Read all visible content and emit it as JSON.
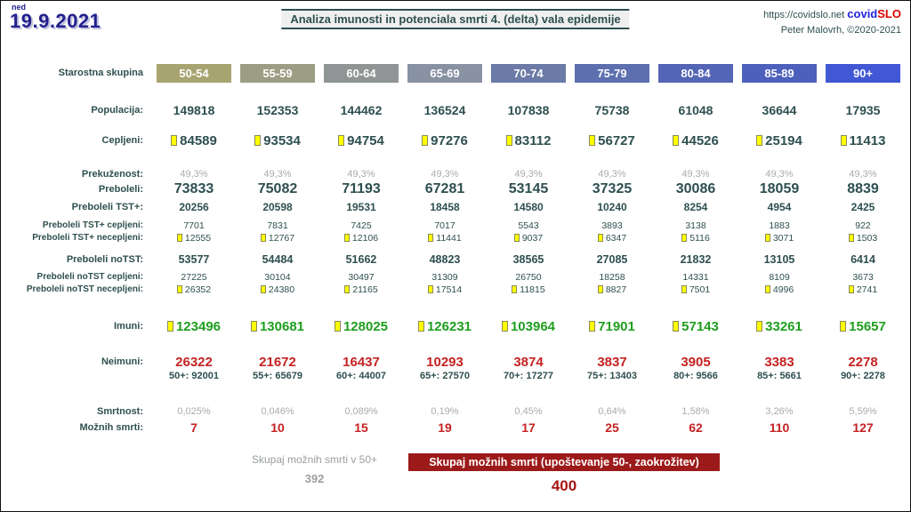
{
  "header": {
    "day_label": "ned",
    "date": "19.9.2021",
    "title": "Analiza imunosti in potenciala smrti 4. (delta) vala epidemije",
    "site_url": "https://covidslo.net",
    "brand_covid": "covid",
    "brand_slo": "SLO",
    "author": "Peter Malovrh, ©2020-2021"
  },
  "table": {
    "age_group_label": "Starostna skupina",
    "columns": [
      "50-54",
      "55-59",
      "60-64",
      "65-69",
      "70-74",
      "75-79",
      "80-84",
      "85-89",
      "90+"
    ],
    "column_colors": [
      "#a8a471",
      "#9d9d85",
      "#909494",
      "#8892a2",
      "#6b7aa6",
      "#5d6fae",
      "#5365b4",
      "#4c60bc",
      "#4257d4"
    ],
    "rows": {
      "populacija": {
        "label": "Populacija:",
        "values": [
          "149818",
          "152353",
          "144462",
          "136524",
          "107838",
          "75738",
          "61048",
          "36644",
          "17935"
        ]
      },
      "cepljeni": {
        "label": "Cepljeni:",
        "values": [
          "84589",
          "93534",
          "94754",
          "97276",
          "83112",
          "56727",
          "44526",
          "25194",
          "11413"
        ]
      },
      "prekuzenost": {
        "label": "Prekuženost:",
        "values": [
          "49,3%",
          "49,3%",
          "49,3%",
          "49,3%",
          "49,3%",
          "49,3%",
          "49,3%",
          "49,3%",
          "49,3%"
        ]
      },
      "preboleli": {
        "label": "Preboleli:",
        "values": [
          "73833",
          "75082",
          "71193",
          "67281",
          "53145",
          "37325",
          "30086",
          "18059",
          "8839"
        ]
      },
      "preboleli_tst": {
        "label": "Preboleli TST+:",
        "values": [
          "20256",
          "20598",
          "19531",
          "18458",
          "14580",
          "10240",
          "8254",
          "4954",
          "2425"
        ]
      },
      "preboleli_tst_cepljeni": {
        "label": "Preboleli TST+ cepljeni:",
        "values": [
          "7701",
          "7831",
          "7425",
          "7017",
          "5543",
          "3893",
          "3138",
          "1883",
          "922"
        ]
      },
      "preboleli_tst_necepljeni": {
        "label": "Preboleli TST+ necepljeni:",
        "values": [
          "12555",
          "12767",
          "12106",
          "11441",
          "9037",
          "6347",
          "5116",
          "3071",
          "1503"
        ]
      },
      "preboleli_notst": {
        "label": "Preboleli noTST:",
        "values": [
          "53577",
          "54484",
          "51662",
          "48823",
          "38565",
          "27085",
          "21832",
          "13105",
          "6414"
        ]
      },
      "preboleli_notst_cepljeni": {
        "label": "Preboleli noTST cepljeni:",
        "values": [
          "27225",
          "30104",
          "30497",
          "31309",
          "26750",
          "18258",
          "14331",
          "8109",
          "3673"
        ]
      },
      "preboleli_notst_necepljeni": {
        "label": "Preboleli noTST necepljeni:",
        "values": [
          "26352",
          "24380",
          "21165",
          "17514",
          "11815",
          "8827",
          "7501",
          "4996",
          "2741"
        ]
      },
      "imuni": {
        "label": "Imuni:",
        "values": [
          "123496",
          "130681",
          "128025",
          "126231",
          "103964",
          "71901",
          "57143",
          "33261",
          "15657"
        ]
      },
      "neimuni": {
        "label": "Neimuni:",
        "values": [
          "26322",
          "21672",
          "16437",
          "10293",
          "3874",
          "3837",
          "3905",
          "3383",
          "2278"
        ]
      },
      "neimuni_cum": {
        "label": "",
        "values": [
          "50+: 92001",
          "55+: 65679",
          "60+: 44007",
          "65+: 27570",
          "70+: 17277",
          "75+: 13403",
          "80+: 9566",
          "85+: 5661",
          "90+: 2278"
        ]
      },
      "smrtnost": {
        "label": "Smrtnost:",
        "values": [
          "0,025%",
          "0,046%",
          "0,089%",
          "0,19%",
          "0,45%",
          "0,64%",
          "1,58%",
          "3,26%",
          "5,59%"
        ]
      },
      "moznih_smrti": {
        "label": "Možnih smrti:",
        "values": [
          "7",
          "10",
          "15",
          "19",
          "17",
          "25",
          "62",
          "110",
          "127"
        ]
      }
    }
  },
  "footer": {
    "left_label": "Skupaj možnih smrti v 50+",
    "left_value": "392",
    "box_label": "Skupaj možnih smrti (upoštevanje 50-, zaokrožitev)",
    "box_value": "400"
  },
  "colors": {
    "ink_teal": "#2e4f4f",
    "immune_green": "#1e9e1e",
    "risk_red": "#c62222",
    "summary_box_red": "#9c1a1a",
    "vial_yellow": "#ffff00",
    "date_navy": "#23218e",
    "brand_blue": "#2222dd",
    "brand_red": "#dd0000",
    "muted_gray": "#a8acac"
  }
}
